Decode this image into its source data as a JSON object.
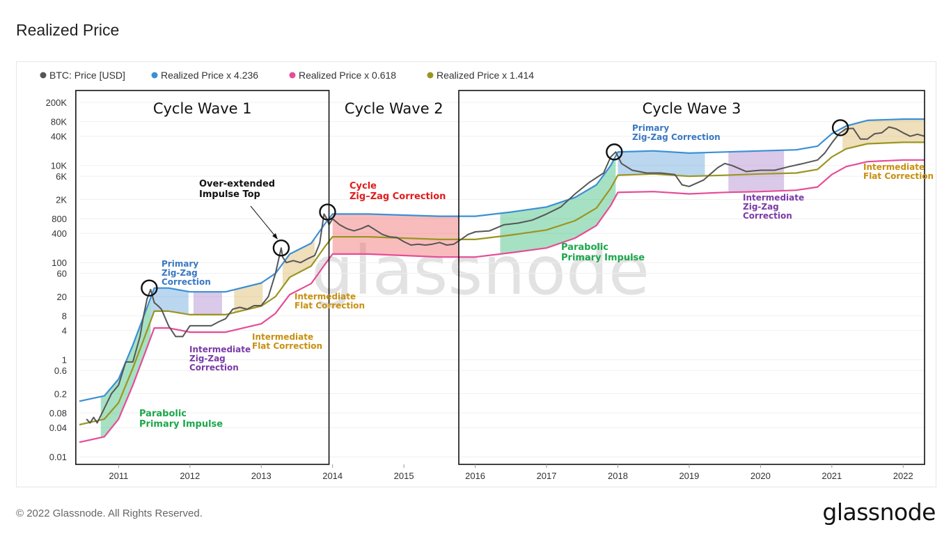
{
  "page": {
    "title": "Realized Price",
    "footer": "© 2022 Glassnode. All Rights Reserved.",
    "logo": "glassnode",
    "watermark": "glassnode"
  },
  "chart_data": {
    "type": "line",
    "title": "Realized Price",
    "xlabel": "",
    "ylabel": "",
    "yscale": "log",
    "xlim": [
      2010.45,
      2022.3
    ],
    "ylim": [
      0.007,
      350000
    ],
    "grid": true,
    "legend_position": "top-left",
    "y_ticks": [
      {
        "label": "200K",
        "value": 200000
      },
      {
        "label": "80K",
        "value": 80000
      },
      {
        "label": "40K",
        "value": 40000
      },
      {
        "label": "10K",
        "value": 10000
      },
      {
        "label": "6K",
        "value": 6000
      },
      {
        "label": "2K",
        "value": 2000
      },
      {
        "label": "800",
        "value": 800
      },
      {
        "label": "400",
        "value": 400
      },
      {
        "label": "100",
        "value": 100
      },
      {
        "label": "60",
        "value": 60
      },
      {
        "label": "20",
        "value": 20
      },
      {
        "label": "8",
        "value": 8
      },
      {
        "label": "4",
        "value": 4
      },
      {
        "label": "1",
        "value": 1
      },
      {
        "label": "0.6",
        "value": 0.6
      },
      {
        "label": "0.2",
        "value": 0.2
      },
      {
        "label": "0.08",
        "value": 0.08
      },
      {
        "label": "0.04",
        "value": 0.04
      },
      {
        "label": "0.01",
        "value": 0.01
      }
    ],
    "x_ticks": [
      {
        "label": "2011",
        "value": 2011
      },
      {
        "label": "2012",
        "value": 2012
      },
      {
        "label": "2013",
        "value": 2013
      },
      {
        "label": "2014",
        "value": 2014
      },
      {
        "label": "2015",
        "value": 2015
      },
      {
        "label": "2016",
        "value": 2016
      },
      {
        "label": "2017",
        "value": 2017
      },
      {
        "label": "2018",
        "value": 2018
      },
      {
        "label": "2019",
        "value": 2019
      },
      {
        "label": "2020",
        "value": 2020
      },
      {
        "label": "2021",
        "value": 2021
      },
      {
        "label": "2022",
        "value": 2022
      }
    ],
    "series": [
      {
        "name": "BTC: Price [USD]",
        "color": "#555555",
        "x": [
          2010.55,
          2010.6,
          2010.65,
          2010.7,
          2010.8,
          2010.9,
          2011.0,
          2011.1,
          2011.2,
          2011.3,
          2011.35,
          2011.4,
          2011.45,
          2011.5,
          2011.55,
          2011.6,
          2011.7,
          2011.8,
          2011.9,
          2012.0,
          2012.1,
          2012.2,
          2012.3,
          2012.4,
          2012.5,
          2012.6,
          2012.7,
          2012.8,
          2012.9,
          2013.0,
          2013.1,
          2013.2,
          2013.28,
          2013.3,
          2013.35,
          2013.45,
          2013.55,
          2013.65,
          2013.75,
          2013.82,
          2013.88,
          2013.92,
          2013.95,
          2014.0,
          2014.1,
          2014.2,
          2014.3,
          2014.4,
          2014.5,
          2014.6,
          2014.7,
          2014.8,
          2014.9,
          2015.0,
          2015.1,
          2015.2,
          2015.3,
          2015.4,
          2015.5,
          2015.6,
          2015.7,
          2015.8,
          2015.9,
          2016.0,
          2016.2,
          2016.4,
          2016.6,
          2016.8,
          2017.0,
          2017.2,
          2017.4,
          2017.6,
          2017.8,
          2017.9,
          2017.97,
          2018.05,
          2018.2,
          2018.4,
          2018.6,
          2018.8,
          2018.9,
          2019.0,
          2019.2,
          2019.4,
          2019.5,
          2019.6,
          2019.8,
          2020.0,
          2020.2,
          2020.4,
          2020.6,
          2020.8,
          2020.9,
          2021.0,
          2021.1,
          2021.2,
          2021.3,
          2021.4,
          2021.5,
          2021.6,
          2021.7,
          2021.8,
          2021.9,
          2022.0,
          2022.1,
          2022.2,
          2022.3
        ],
        "y": [
          0.06,
          0.05,
          0.065,
          0.05,
          0.1,
          0.2,
          0.3,
          0.9,
          0.9,
          3,
          8,
          18,
          28,
          15,
          13,
          11,
          5,
          3,
          3,
          5,
          5,
          5,
          5,
          6,
          7,
          11,
          12,
          11,
          13,
          13,
          20,
          60,
          200,
          130,
          100,
          110,
          100,
          120,
          140,
          250,
          1000,
          800,
          600,
          800,
          600,
          500,
          450,
          500,
          580,
          470,
          380,
          340,
          330,
          270,
          230,
          240,
          230,
          240,
          260,
          230,
          240,
          300,
          380,
          430,
          450,
          600,
          650,
          750,
          1000,
          1400,
          2600,
          4500,
          7000,
          15000,
          19000,
          11000,
          8000,
          7000,
          7000,
          6500,
          4000,
          3700,
          5000,
          9000,
          11000,
          10000,
          7500,
          8000,
          8000,
          9500,
          11000,
          13000,
          18000,
          29000,
          45000,
          57000,
          58000,
          35000,
          35000,
          45000,
          47000,
          62000,
          57000,
          47000,
          40000,
          44000,
          40000
        ]
      },
      {
        "name": "Realized Price x 4.236",
        "color": "#3b8fd6",
        "x": [
          2010.45,
          2010.8,
          2011.0,
          2011.2,
          2011.4,
          2011.5,
          2011.7,
          2012.0,
          2012.5,
          2013.0,
          2013.2,
          2013.4,
          2013.7,
          2013.9,
          2014.0,
          2014.5,
          2015.0,
          2015.5,
          2016.0,
          2016.5,
          2017.0,
          2017.4,
          2017.7,
          2017.9,
          2018.0,
          2018.5,
          2019.0,
          2019.5,
          2020.0,
          2020.5,
          2020.8,
          2021.0,
          2021.2,
          2021.5,
          2022.0,
          2022.3
        ],
        "y": [
          0.14,
          0.18,
          0.4,
          2,
          12,
          30,
          30,
          25,
          25,
          38,
          60,
          150,
          250,
          650,
          1000,
          1000,
          950,
          900,
          900,
          1100,
          1400,
          2200,
          4000,
          10000,
          19000,
          20000,
          18000,
          19000,
          20000,
          21000,
          25000,
          45000,
          65000,
          85000,
          90000,
          90000
        ]
      },
      {
        "name": "Realized Price x 0.618",
        "color": "#e64c96",
        "x": [
          2010.45,
          2010.8,
          2011.0,
          2011.2,
          2011.4,
          2011.5,
          2011.7,
          2012.0,
          2012.5,
          2013.0,
          2013.2,
          2013.4,
          2013.7,
          2013.9,
          2014.0,
          2014.5,
          2015.0,
          2015.5,
          2016.0,
          2016.5,
          2017.0,
          2017.4,
          2017.7,
          2017.9,
          2018.0,
          2018.5,
          2019.0,
          2019.5,
          2020.0,
          2020.5,
          2020.8,
          2021.0,
          2021.2,
          2021.5,
          2022.0,
          2022.3
        ],
        "y": [
          0.02,
          0.026,
          0.06,
          0.3,
          1.8,
          4.5,
          4.5,
          3.7,
          3.7,
          5.5,
          9,
          22,
          37,
          95,
          150,
          150,
          140,
          130,
          130,
          160,
          200,
          320,
          580,
          1500,
          2800,
          2900,
          2600,
          2800,
          2900,
          3100,
          3600,
          6500,
          9500,
          12000,
          13000,
          13000
        ]
      },
      {
        "name": "Realized Price x 1.414",
        "color": "#9a9520",
        "x": [
          2010.45,
          2010.8,
          2011.0,
          2011.2,
          2011.4,
          2011.5,
          2011.7,
          2012.0,
          2012.5,
          2013.0,
          2013.2,
          2013.4,
          2013.7,
          2013.9,
          2014.0,
          2014.5,
          2015.0,
          2015.5,
          2016.0,
          2016.5,
          2017.0,
          2017.4,
          2017.7,
          2017.9,
          2018.0,
          2018.5,
          2019.0,
          2019.5,
          2020.0,
          2020.5,
          2020.8,
          2021.0,
          2021.2,
          2021.5,
          2022.0,
          2022.3
        ],
        "y": [
          0.046,
          0.06,
          0.13,
          0.67,
          4,
          10,
          10,
          8.5,
          8.5,
          12.7,
          20,
          50,
          85,
          220,
          340,
          340,
          320,
          300,
          300,
          370,
          470,
          730,
          1330,
          3400,
          6300,
          6700,
          6000,
          6300,
          6700,
          7000,
          8300,
          15000,
          22000,
          28000,
          30000,
          30000
        ]
      }
    ],
    "legend": [
      {
        "label": "BTC: Price [USD]",
        "color": "#555555"
      },
      {
        "label": "Realized Price x 4.236",
        "color": "#3b8fd6"
      },
      {
        "label": "Realized Price x 0.618",
        "color": "#e64c96"
      },
      {
        "label": "Realized Price x 1.414",
        "color": "#9a9520"
      }
    ],
    "shaded_regions": [
      {
        "x0": 2010.75,
        "x1": 2011.45,
        "upper": "Realized Price x 4.236",
        "lower": "Realized Price x 0.618",
        "color": "#2eb872"
      },
      {
        "x0": 2011.45,
        "x1": 2011.98,
        "upper": "Realized Price x 4.236",
        "lower": "Realized Price x 1.414",
        "color": "#5b9fd8"
      },
      {
        "x0": 2012.05,
        "x1": 2012.45,
        "upper": "Realized Price x 4.236",
        "lower": "Realized Price x 1.414",
        "color": "#a77fc9"
      },
      {
        "x0": 2012.62,
        "x1": 2013.02,
        "upper": "Realized Price x 4.236",
        "lower": "Realized Price x 1.414",
        "color": "#d9b25a"
      },
      {
        "x0": 2013.3,
        "x1": 2013.75,
        "upper": "Realized Price x 4.236",
        "lower": "Realized Price x 1.414",
        "color": "#d9b25a"
      },
      {
        "x0": 2014.0,
        "x1": 2015.77,
        "upper": "Realized Price x 4.236",
        "lower": "Realized Price x 0.618",
        "color": "#f06060"
      },
      {
        "x0": 2016.35,
        "x1": 2017.97,
        "upper": "Realized Price x 4.236",
        "lower": "Realized Price x 0.618",
        "color": "#2eb872"
      },
      {
        "x0": 2018.0,
        "x1": 2019.22,
        "upper": "Realized Price x 4.236",
        "lower": "Realized Price x 1.414",
        "color": "#5b9fd8"
      },
      {
        "x0": 2019.55,
        "x1": 2020.33,
        "upper": "Realized Price x 4.236",
        "lower": "Realized Price x 0.618",
        "color": "#a77fc9"
      },
      {
        "x0": 2021.15,
        "x1": 2022.3,
        "upper": "Realized Price x 4.236",
        "lower": "Realized Price x 1.414",
        "color": "#d9b25a"
      }
    ],
    "wave_boxes": [
      {
        "label": "Cycle Wave 1",
        "x0": 2010.4,
        "x1": 2013.95,
        "boxed": true
      },
      {
        "label": "Cycle Wave 2",
        "x0": 2013.95,
        "x1": 2015.77,
        "boxed": false
      },
      {
        "label": "Cycle Wave 3",
        "x0": 2015.77,
        "x1": 2022.3,
        "boxed": true
      }
    ],
    "top_markers": [
      {
        "x": 2011.43,
        "y": 30
      },
      {
        "x": 2013.28,
        "y": 200
      },
      {
        "x": 2013.93,
        "y": 1100
      },
      {
        "x": 2017.95,
        "y": 19000
      },
      {
        "x": 2021.12,
        "y": 60000
      }
    ],
    "annotations": [
      {
        "text": [
          "Primary",
          "Zig-Zag",
          "Correction"
        ],
        "color": "#3a78c2"
      },
      {
        "text": [
          "Intermediate",
          "Zig-Zag",
          "Correction"
        ],
        "color": "#7a3aa8"
      },
      {
        "text": [
          "Intermediate",
          "Flat Correction"
        ],
        "color": "#c89010"
      },
      {
        "text": [
          "Intermediate",
          "Flat Correction"
        ],
        "color": "#c89010"
      },
      {
        "text": [
          "Over-extended",
          "Impulse Top"
        ],
        "color": "#111111"
      },
      {
        "text": [
          "Parabolic",
          "Primary Impulse"
        ],
        "color": "#1aa84a"
      },
      {
        "text": [
          "Cycle",
          "Zig–Zag Correction"
        ],
        "color": "#e01b1b"
      },
      {
        "text": [
          "Primary",
          "Zig-Zag Correction"
        ],
        "color": "#3a78c2"
      },
      {
        "text": [
          "Parabolic",
          "Primary Impulse"
        ],
        "color": "#1aa84a"
      },
      {
        "text": [
          "Intermediate",
          "Zig-Zag",
          "Correction"
        ],
        "color": "#7a3aa8"
      },
      {
        "text": [
          "Intermediate",
          "Flat Correction"
        ],
        "color": "#c89010"
      }
    ]
  }
}
